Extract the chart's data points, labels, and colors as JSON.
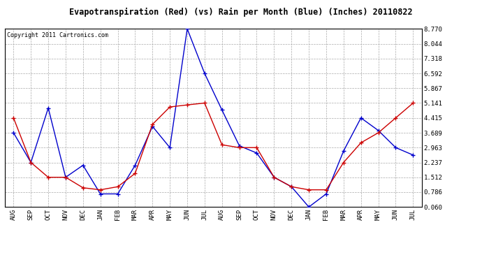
{
  "title": "Evapotranspiration (Red) (vs) Rain per Month (Blue) (Inches) 20110822",
  "copyright": "Copyright 2011 Cartronics.com",
  "months": [
    "AUG",
    "SEP",
    "OCT",
    "NOV",
    "DEC",
    "JAN",
    "FEB",
    "MAR",
    "APR",
    "MAY",
    "JUN",
    "JUL",
    "AUG",
    "SEP",
    "OCT",
    "NOV",
    "DEC",
    "JAN",
    "FEB",
    "MAR",
    "APR",
    "MAY",
    "JUN",
    "JUL"
  ],
  "red_et": [
    4.415,
    2.237,
    1.512,
    1.512,
    1.0,
    0.9,
    1.05,
    1.7,
    4.1,
    4.95,
    5.05,
    5.141,
    3.1,
    2.963,
    2.963,
    1.512,
    1.05,
    0.9,
    0.9,
    2.237,
    3.2,
    3.689,
    4.415,
    5.141
  ],
  "blue_rain": [
    3.689,
    2.237,
    4.9,
    1.512,
    2.1,
    0.7,
    0.7,
    2.1,
    4.0,
    2.963,
    8.77,
    6.592,
    4.8,
    3.05,
    2.7,
    1.512,
    1.05,
    0.06,
    0.7,
    2.8,
    4.415,
    3.8,
    2.963,
    2.6
  ],
  "yticks": [
    0.06,
    0.786,
    1.512,
    2.237,
    2.963,
    3.689,
    4.415,
    5.141,
    5.867,
    6.592,
    7.318,
    8.044,
    8.77
  ],
  "ymin": 0.06,
  "ymax": 8.77,
  "red_color": "#cc0000",
  "blue_color": "#0000cc",
  "background_color": "#ffffff",
  "grid_color": "#aaaaaa",
  "title_fontsize": 8.5,
  "copyright_fontsize": 6,
  "tick_fontsize": 6.5
}
